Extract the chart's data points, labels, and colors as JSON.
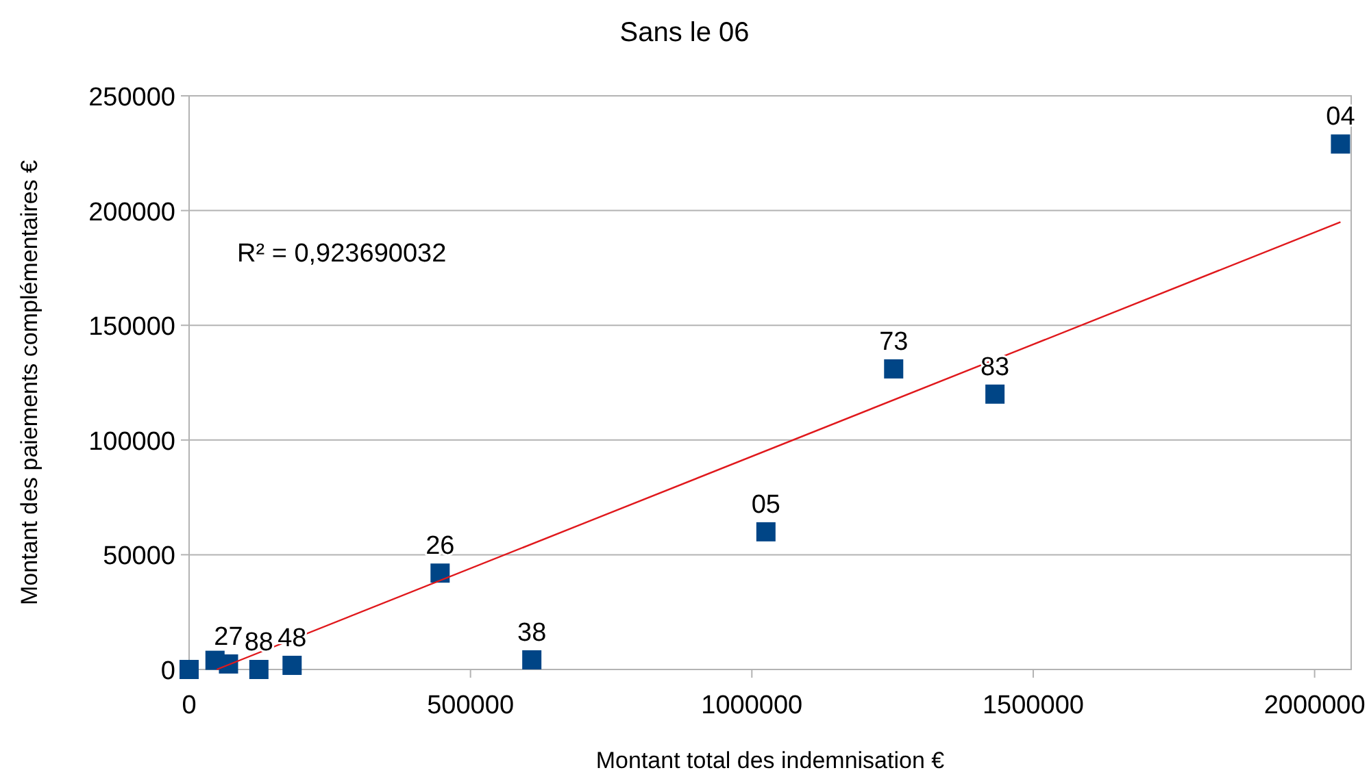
{
  "chart_data": {
    "type": "scatter",
    "title": "Sans le 06",
    "xlabel": "Montant total des indemnisation €",
    "ylabel": "Montant des paiements complémentaires €",
    "xlim": [
      0,
      2065000
    ],
    "ylim": [
      0,
      250000
    ],
    "xticks": [
      0,
      500000,
      1000000,
      1500000,
      2000000
    ],
    "yticks": [
      0,
      50000,
      100000,
      150000,
      200000,
      250000
    ],
    "grid": "y",
    "marker": "square",
    "annotations": [
      "R² = 0,923690032",
      {
        "text": "04",
        "x": 2046000,
        "y": 229000
      },
      {
        "text": "73",
        "x": 1252000,
        "y": 131000
      },
      {
        "text": "83",
        "x": 1432000,
        "y": 120000
      },
      {
        "text": "05",
        "x": 1025000,
        "y": 60000
      },
      {
        "text": "26",
        "x": 446000,
        "y": 42000
      },
      {
        "text": "38",
        "x": 609000,
        "y": 4200
      },
      {
        "text": "48",
        "x": 183000,
        "y": 1800
      },
      {
        "text": "88",
        "x": 124000,
        "y": 0
      },
      {
        "text": "27",
        "x": 70000,
        "y": 2400
      }
    ],
    "series": [
      {
        "color": "#004586",
        "x": [
          2046000,
          1252000,
          1432000,
          1025000,
          446000,
          609000,
          183000,
          124000,
          46000,
          70000,
          0
        ],
        "values": [
          229000,
          131000,
          120000,
          60000,
          42000,
          4200,
          1800,
          0,
          4000,
          2400,
          0
        ]
      },
      {
        "type": "line",
        "color": "#e0181c",
        "marker": "none",
        "x": [
          49000,
          2046000
        ],
        "values": [
          0,
          195000
        ]
      }
    ]
  }
}
